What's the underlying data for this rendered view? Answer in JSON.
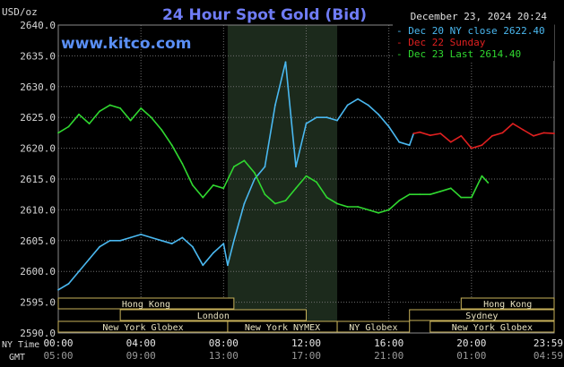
{
  "chart_data": {
    "type": "line",
    "title": "24 Hour Spot Gold (Bid)",
    "ylabel": "USD/oz",
    "watermark": "www.kitco.com",
    "date_stamp": "December 23, 2024 20:24",
    "ylim": [
      2590.0,
      2640.0
    ],
    "y_ticks": [
      "2640.0",
      "2635.0",
      "2630.0",
      "2625.0",
      "2620.0",
      "2615.0",
      "2610.0",
      "2605.0",
      "2600.0",
      "2595.0",
      "2590.0"
    ],
    "y_tick_values": [
      2640,
      2635,
      2630,
      2625,
      2620,
      2615,
      2610,
      2605,
      2600,
      2595,
      2590
    ],
    "xlim_hours": [
      0,
      24
    ],
    "x_row_label_top": "NY Time",
    "x_row_label_bottom": "GMT",
    "x_ticks_ny": [
      "00:00",
      "04:00",
      "08:00",
      "12:00",
      "16:00",
      "20:00",
      "23:59"
    ],
    "x_ticks_gmt": [
      "05:00",
      "09:00",
      "13:00",
      "17:00",
      "21:00",
      "01:00",
      "04:59"
    ],
    "x_tick_hours": [
      0,
      4,
      8,
      12,
      16,
      20,
      23.983
    ],
    "legend_position": "top-right",
    "shaded_session_hours": [
      8.2,
      13.5
    ],
    "series": [
      {
        "name": "Dec 20 NY close 2622.40",
        "color": "#4ab8f0",
        "x": [
          0,
          0.5,
          1,
          1.5,
          2,
          2.5,
          3,
          3.5,
          4,
          4.5,
          5,
          5.5,
          6,
          6.5,
          7,
          7.5,
          8,
          8.2,
          8.5,
          9,
          9.5,
          10,
          10.5,
          11,
          11.5,
          12,
          12.5,
          13,
          13.5,
          14,
          14.5,
          15,
          15.5,
          16,
          16.5,
          17,
          17.2
        ],
        "values": [
          2597,
          2598,
          2600,
          2602,
          2604,
          2605,
          2605,
          2605.5,
          2606,
          2605.5,
          2605,
          2604.5,
          2605.5,
          2604,
          2601,
          2603,
          2604.5,
          2601,
          2605,
          2611,
          2615,
          2617,
          2627,
          2634,
          2617,
          2624,
          2625,
          2625,
          2624.5,
          2627,
          2628,
          2627,
          2625.5,
          2623.5,
          2621,
          2620.5,
          2622.4
        ]
      },
      {
        "name": "Dec 22 Sunday",
        "color": "#e02020",
        "x": [
          17.2,
          17.5,
          18,
          18.5,
          19,
          19.5,
          20,
          20.5,
          21,
          21.5,
          22,
          22.5,
          23,
          23.5,
          24
        ],
        "values": [
          2622.4,
          2622.6,
          2622.1,
          2622.4,
          2621,
          2622,
          2620,
          2620.5,
          2622,
          2622.5,
          2624,
          2623,
          2622,
          2622.5,
          2622.4
        ]
      },
      {
        "name": "Dec 23 Last 2614.40",
        "color": "#30d830",
        "x": [
          0,
          0.5,
          1,
          1.5,
          2,
          2.5,
          3,
          3.5,
          4,
          4.5,
          5,
          5.5,
          6,
          6.5,
          7,
          7.5,
          8,
          8.5,
          9,
          9.5,
          10,
          10.5,
          11,
          11.5,
          12,
          12.5,
          13,
          13.5,
          14,
          14.5,
          15,
          15.5,
          16,
          16.5,
          17,
          17.5,
          18,
          18.5,
          19,
          19.5,
          20,
          20.5,
          20.8
        ],
        "values": [
          2622.5,
          2623.5,
          2625.5,
          2624,
          2626,
          2627,
          2626.5,
          2624.5,
          2626.5,
          2625,
          2623,
          2620.5,
          2617.5,
          2614,
          2612,
          2614,
          2613.5,
          2617,
          2618,
          2616,
          2612.5,
          2611,
          2611.5,
          2613.5,
          2615.5,
          2614.5,
          2612,
          2611,
          2610.5,
          2610.5,
          2610,
          2609.5,
          2610,
          2611.5,
          2612.5,
          2612.5,
          2612.5,
          2613,
          2613.5,
          2612,
          2612,
          2615.5,
          2614.4
        ]
      }
    ],
    "market_sessions": [
      {
        "name": "Hong Kong",
        "row": 1,
        "start_hour": 0,
        "end_hour": 8.5
      },
      {
        "name": "London",
        "row": 2,
        "start_hour": 3,
        "end_hour": 12
      },
      {
        "name": "New York Globex",
        "row": 3,
        "start_hour": 0,
        "end_hour": 8.2
      },
      {
        "name": "New York NYMEX",
        "row": 3,
        "start_hour": 8.2,
        "end_hour": 13.5
      },
      {
        "name": "NY Globex",
        "row": 3,
        "start_hour": 13.5,
        "end_hour": 17
      },
      {
        "name": "Hong Kong",
        "row": 1,
        "start_hour": 19.5,
        "end_hour": 24
      },
      {
        "name": "Sydney",
        "row": 2,
        "start_hour": 17,
        "end_hour": 24
      },
      {
        "name": "New York Globex",
        "row": 3,
        "start_hour": 18,
        "end_hour": 24
      }
    ]
  }
}
